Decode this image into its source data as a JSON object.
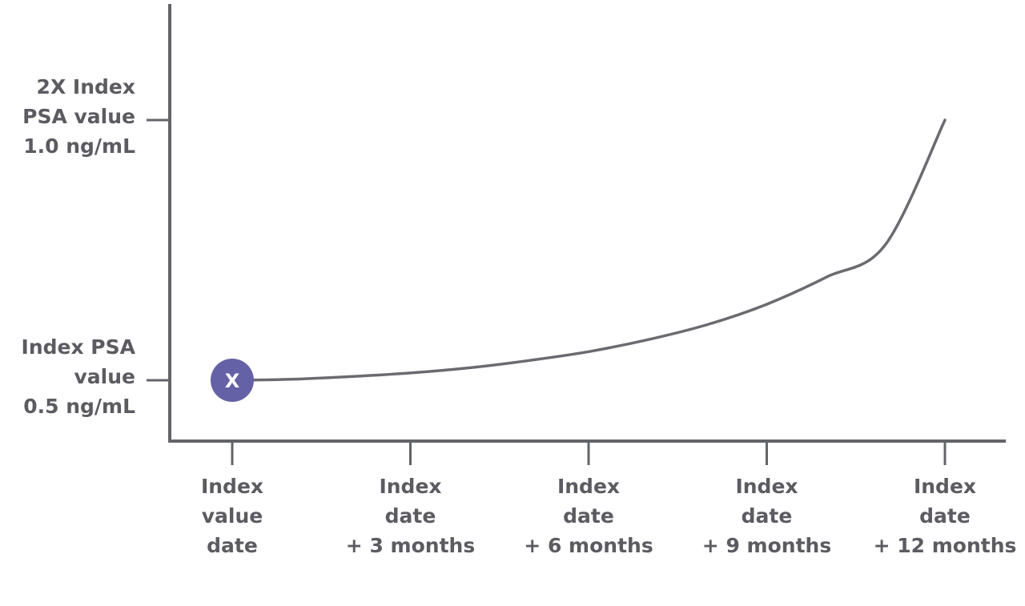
{
  "chart_data": {
    "type": "line",
    "title": "",
    "xlabel": "",
    "ylabel": "",
    "x_ticks": [
      {
        "months": 0,
        "label": [
          "Index",
          "value",
          "date"
        ]
      },
      {
        "months": 3,
        "label": [
          "Index",
          "date",
          "+ 3 months"
        ]
      },
      {
        "months": 6,
        "label": [
          "Index",
          "date",
          "+ 6 months"
        ]
      },
      {
        "months": 9,
        "label": [
          "Index",
          "date",
          "+ 9 months"
        ]
      },
      {
        "months": 12,
        "label": [
          "Index",
          "date",
          "+ 12 months"
        ]
      }
    ],
    "y_ticks": [
      {
        "value": 0.5,
        "label": [
          "Index PSA",
          "value",
          "0.5 ng/mL"
        ]
      },
      {
        "value": 1.0,
        "label": [
          "2X Index",
          "PSA value",
          "1.0 ng/mL"
        ]
      }
    ],
    "series": [
      {
        "x": [
          0,
          1,
          2,
          3,
          4,
          5,
          6,
          7,
          8,
          9,
          10,
          11,
          12
        ],
        "y": [
          0.5,
          0.502,
          0.507,
          0.514,
          0.524,
          0.538,
          0.555,
          0.578,
          0.607,
          0.646,
          0.698,
          0.761,
          1.0
        ]
      }
    ],
    "marker": {
      "x": 0,
      "y": 0.5,
      "label": "X",
      "color": "#6461a6",
      "text_color": "#ffffff"
    },
    "colors": {
      "axis": "#636469",
      "line": "#6a6b70",
      "text": "#5b5b61"
    },
    "grid": false
  }
}
